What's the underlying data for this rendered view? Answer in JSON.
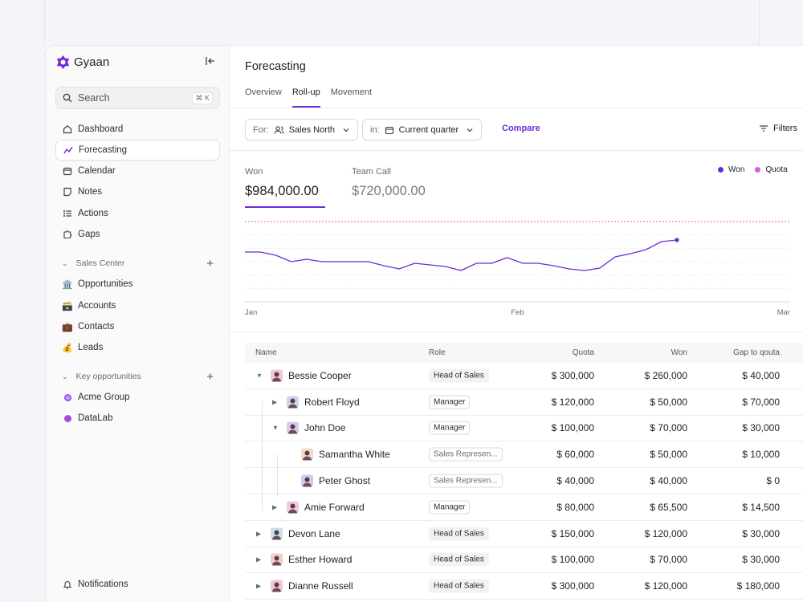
{
  "app": {
    "name": "Gyaan"
  },
  "search": {
    "label": "Search",
    "shortcut": "⌘ K"
  },
  "sidebar": {
    "nav": [
      {
        "label": "Dashboard",
        "icon": "home-icon"
      },
      {
        "label": "Forecasting",
        "icon": "chart-icon"
      },
      {
        "label": "Calendar",
        "icon": "calendar-icon"
      },
      {
        "label": "Notes",
        "icon": "note-icon"
      },
      {
        "label": "Actions",
        "icon": "list-icon"
      },
      {
        "label": "Gaps",
        "icon": "puzzle-icon"
      }
    ],
    "sales_center": {
      "title": "Sales Center",
      "items": [
        {
          "label": "Opportunities",
          "icon": "🏛️"
        },
        {
          "label": "Accounts",
          "icon": "🗃️"
        },
        {
          "label": "Contacts",
          "icon": "💼"
        },
        {
          "label": "Leads",
          "icon": "💰"
        }
      ]
    },
    "key_opps": {
      "title": "Key opportunities",
      "items": [
        {
          "label": "Acme Group",
          "color": "#9b6cf0"
        },
        {
          "label": "DataLab",
          "color": "#a44bd6"
        }
      ]
    },
    "notifications": "Notifications"
  },
  "page": {
    "title": "Forecasting",
    "tabs": [
      "Overview",
      "Roll-up",
      "Movement"
    ],
    "active_tab": "Roll-up"
  },
  "filters": {
    "for_prefix": "For:",
    "for_value": "Sales North",
    "in_prefix": "in:",
    "in_value": "Current quarter",
    "compare": "Compare",
    "filters": "Filters"
  },
  "kpis": {
    "won": {
      "label": "Won",
      "value": "$984,000.00"
    },
    "team_call": {
      "label": "Team Call",
      "value": "$720,000.00"
    }
  },
  "colors": {
    "accent": "#6b2bd9",
    "quota": "#d65bd6"
  },
  "chart_data": {
    "type": "line",
    "x_ticks": [
      "Jan",
      "Feb",
      "Mar"
    ],
    "legend": [
      "Won",
      "Quota"
    ],
    "series": [
      {
        "name": "Won",
        "values": [
          0.62,
          0.62,
          0.58,
          0.5,
          0.53,
          0.5,
          0.5,
          0.5,
          0.5,
          0.45,
          0.41,
          0.48,
          0.46,
          0.44,
          0.39,
          0.48,
          0.48,
          0.55,
          0.48,
          0.48,
          0.45,
          0.41,
          0.39,
          0.42,
          0.56,
          0.6,
          0.65,
          0.75,
          0.77
        ]
      },
      {
        "name": "Quota",
        "values": [
          1.0
        ]
      }
    ],
    "legend_position": "top-right",
    "grid": true
  },
  "table": {
    "columns": [
      "Name",
      "Role",
      "Quota",
      "Won",
      "Gap to qouta"
    ],
    "rows": [
      {
        "name": "Bessie Cooper",
        "role": "Head of Sales",
        "quota": "$ 300,000",
        "won": "$ 260,000",
        "gap": "$ 40,000"
      },
      {
        "name": "Robert Floyd",
        "role": "Manager",
        "quota": "$ 120,000",
        "won": "$ 50,000",
        "gap": "$ 70,000"
      },
      {
        "name": "John Doe",
        "role": "Manager",
        "quota": "$ 100,000",
        "won": "$ 70,000",
        "gap": "$ 30,000"
      },
      {
        "name": "Samantha White",
        "role": "Sales Represen...",
        "quota": "$ 60,000",
        "won": "$ 50,000",
        "gap": "$ 10,000"
      },
      {
        "name": "Peter Ghost",
        "role": "Sales Represen...",
        "quota": "$ 40,000",
        "won": "$ 40,000",
        "gap": "$ 0"
      },
      {
        "name": "Amie Forward",
        "role": "Manager",
        "quota": "$ 80,000",
        "won": "$ 65,500",
        "gap": "$ 14,500"
      },
      {
        "name": "Devon Lane",
        "role": "Head of Sales",
        "quota": "$ 150,000",
        "won": "$ 120,000",
        "gap": "$ 30,000"
      },
      {
        "name": "Esther Howard",
        "role": "Head of Sales",
        "quota": "$ 100,000",
        "won": "$ 70,000",
        "gap": "$ 30,000"
      },
      {
        "name": "Dianne Russell",
        "role": "Head of Sales",
        "quota": "$ 300,000",
        "won": "$ 120,000",
        "gap": "$ 180,000"
      }
    ]
  }
}
